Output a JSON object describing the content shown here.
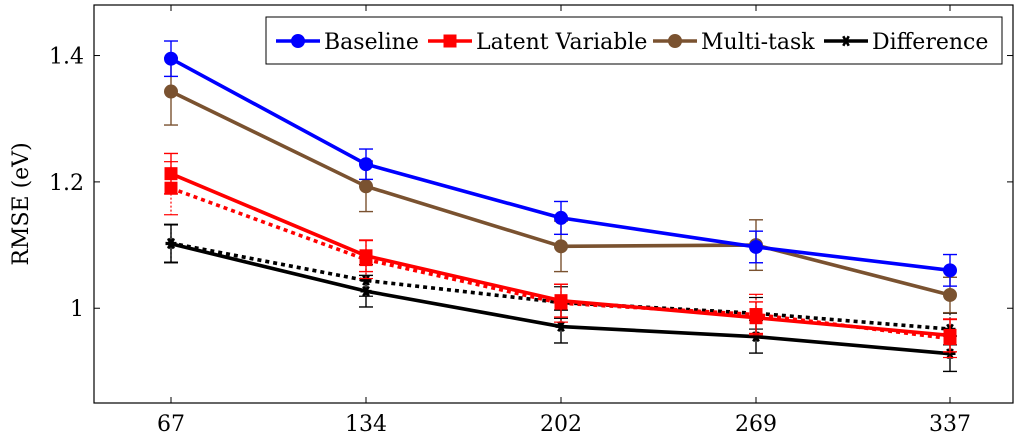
{
  "chart_data": {
    "type": "line",
    "title": "",
    "xlabel": "",
    "ylabel": "RMSE (eV)",
    "categories": [
      "67",
      "134",
      "202",
      "269",
      "337"
    ],
    "x": [
      67,
      134,
      202,
      269,
      337
    ],
    "ylim": [
      0.85,
      1.48
    ],
    "yticks": [
      1.0,
      1.2,
      1.4
    ],
    "ytick_labels": [
      "1",
      "1.2",
      "1.4"
    ],
    "grid": false,
    "legend_position": "top-right",
    "error_bars": true,
    "series": [
      {
        "name": "Baseline",
        "color": "#0000ff",
        "marker": "circle",
        "linestyle": "solid",
        "values": [
          1.395,
          1.228,
          1.143,
          1.097,
          1.06
        ],
        "errors": [
          0.028,
          0.024,
          0.026,
          0.025,
          0.025
        ]
      },
      {
        "name": "Latent Variable",
        "color": "#ff0000",
        "marker": "square",
        "linestyle": "solid",
        "values": [
          1.213,
          1.083,
          1.012,
          0.985,
          0.957
        ],
        "errors": [
          0.032,
          0.025,
          0.026,
          0.025,
          0.026
        ]
      },
      {
        "name": "",
        "color": "#ff0000",
        "marker": "square",
        "linestyle": "dotted",
        "values": [
          1.19,
          1.077,
          1.008,
          0.99,
          0.952
        ],
        "errors": [
          0.042,
          0.03,
          0.03,
          0.032,
          0.03
        ]
      },
      {
        "name": "Multi-task",
        "color": "#7a5230",
        "marker": "circle",
        "linestyle": "solid",
        "values": [
          1.343,
          1.193,
          1.098,
          1.1,
          1.021
        ],
        "errors": [
          0.053,
          0.04,
          0.04,
          0.04,
          0.028
        ]
      },
      {
        "name": "Difference",
        "color": "#000000",
        "marker": "star",
        "linestyle": "solid",
        "values": [
          1.102,
          1.027,
          0.971,
          0.955,
          0.928
        ],
        "errors": [
          0.03,
          0.025,
          0.026,
          0.026,
          0.028
        ]
      },
      {
        "name": "",
        "color": "#000000",
        "marker": "star",
        "linestyle": "dotted",
        "values": [
          1.103,
          1.044,
          1.009,
          0.992,
          0.967
        ],
        "errors": [
          0.03,
          0.025,
          0.025,
          0.025,
          0.025
        ]
      }
    ]
  }
}
